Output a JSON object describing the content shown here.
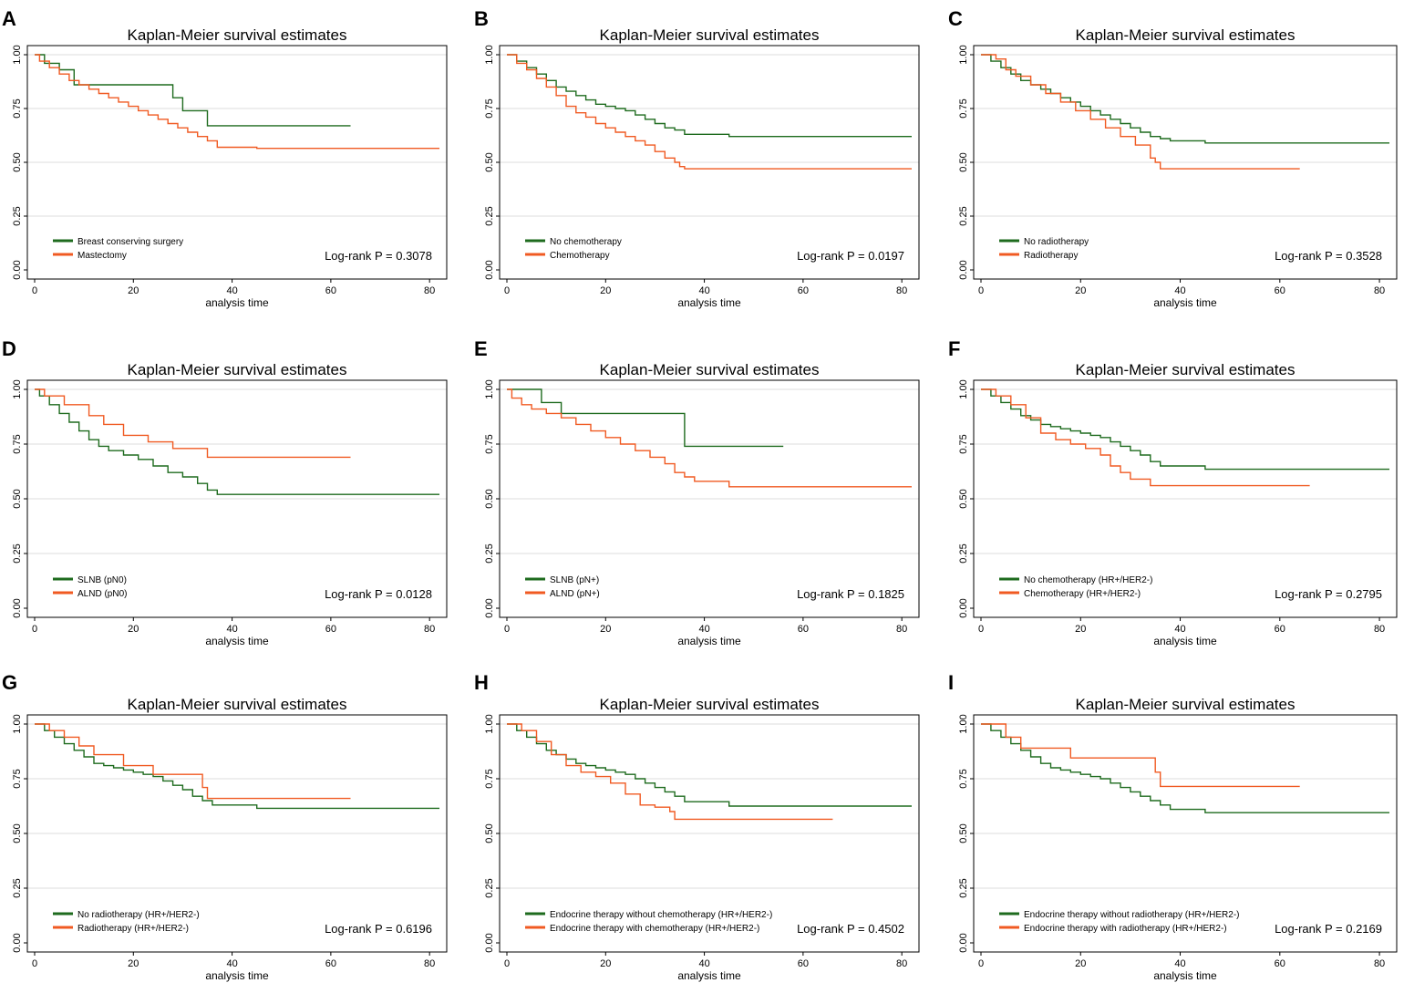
{
  "chart_data": [
    {
      "letter": "A",
      "type": "line",
      "step": true,
      "title": "Kaplan-Meier survival estimates",
      "xlabel": "analysis time",
      "ylabel": "",
      "xlim": [
        0,
        82
      ],
      "ylim": [
        0,
        1
      ],
      "xticks": [
        "0",
        "20",
        "40",
        "60",
        "80"
      ],
      "yticks": [
        "0.00",
        "0.25",
        "0.50",
        "0.75",
        "1.00"
      ],
      "pvalue": "Log-rank P = 0.3078",
      "series": [
        {
          "name": "Breast conserving surgery",
          "color": "#1e6b1e",
          "x": [
            0,
            2,
            5,
            8,
            28,
            30,
            35,
            64
          ],
          "y": [
            1,
            0.96,
            0.93,
            0.86,
            0.8,
            0.74,
            0.67,
            0.67
          ]
        },
        {
          "name": "Mastectomy",
          "color": "#f05a22",
          "x": [
            0,
            1,
            3,
            5,
            7,
            9,
            11,
            13,
            15,
            17,
            19,
            21,
            23,
            25,
            27,
            29,
            31,
            33,
            35,
            37,
            45,
            82
          ],
          "y": [
            1,
            0.97,
            0.94,
            0.91,
            0.88,
            0.86,
            0.84,
            0.82,
            0.8,
            0.78,
            0.76,
            0.74,
            0.72,
            0.7,
            0.68,
            0.66,
            0.64,
            0.62,
            0.6,
            0.57,
            0.565,
            0.565
          ]
        }
      ]
    },
    {
      "letter": "B",
      "type": "line",
      "step": true,
      "title": "Kaplan-Meier survival estimates",
      "xlabel": "analysis time",
      "ylabel": "",
      "xlim": [
        0,
        82
      ],
      "ylim": [
        0,
        1
      ],
      "xticks": [
        "0",
        "20",
        "40",
        "60",
        "80"
      ],
      "yticks": [
        "0.00",
        "0.25",
        "0.50",
        "0.75",
        "1.00"
      ],
      "pvalue": "Log-rank P = 0.0197",
      "series": [
        {
          "name": "No chemotherapy",
          "color": "#1e6b1e",
          "x": [
            0,
            2,
            4,
            6,
            8,
            10,
            12,
            14,
            16,
            18,
            20,
            22,
            24,
            26,
            28,
            30,
            32,
            34,
            36,
            45,
            82
          ],
          "y": [
            1,
            0.97,
            0.94,
            0.91,
            0.88,
            0.85,
            0.83,
            0.81,
            0.79,
            0.77,
            0.76,
            0.75,
            0.74,
            0.72,
            0.7,
            0.68,
            0.66,
            0.65,
            0.63,
            0.62,
            0.62
          ]
        },
        {
          "name": "Chemotherapy",
          "color": "#f05a22",
          "x": [
            0,
            2,
            4,
            6,
            8,
            10,
            12,
            14,
            16,
            18,
            20,
            22,
            24,
            26,
            28,
            30,
            32,
            34,
            35,
            36,
            82
          ],
          "y": [
            1,
            0.96,
            0.93,
            0.89,
            0.85,
            0.81,
            0.76,
            0.73,
            0.71,
            0.68,
            0.66,
            0.64,
            0.62,
            0.6,
            0.58,
            0.55,
            0.52,
            0.5,
            0.48,
            0.47,
            0.47
          ]
        }
      ]
    },
    {
      "letter": "C",
      "type": "line",
      "step": true,
      "title": "Kaplan-Meier survival estimates",
      "xlabel": "analysis time",
      "ylabel": "",
      "xlim": [
        0,
        82
      ],
      "ylim": [
        0,
        1
      ],
      "xticks": [
        "0",
        "20",
        "40",
        "60",
        "80"
      ],
      "yticks": [
        "0.00",
        "0.25",
        "0.50",
        "0.75",
        "1.00"
      ],
      "pvalue": "Log-rank P = 0.3528",
      "series": [
        {
          "name": "No radiotherapy",
          "color": "#1e6b1e",
          "x": [
            0,
            2,
            4,
            6,
            8,
            10,
            12,
            14,
            16,
            18,
            20,
            22,
            24,
            26,
            28,
            30,
            32,
            34,
            36,
            38,
            45,
            82
          ],
          "y": [
            1,
            0.97,
            0.94,
            0.91,
            0.88,
            0.86,
            0.84,
            0.82,
            0.8,
            0.78,
            0.76,
            0.74,
            0.72,
            0.7,
            0.68,
            0.66,
            0.64,
            0.62,
            0.61,
            0.6,
            0.59,
            0.59
          ]
        },
        {
          "name": "Radiotherapy",
          "color": "#f05a22",
          "x": [
            0,
            3,
            5,
            7,
            10,
            13,
            16,
            19,
            22,
            25,
            28,
            31,
            34,
            35,
            36,
            64
          ],
          "y": [
            1,
            0.98,
            0.93,
            0.9,
            0.86,
            0.82,
            0.78,
            0.74,
            0.7,
            0.66,
            0.62,
            0.58,
            0.52,
            0.5,
            0.47,
            0.47
          ]
        }
      ]
    },
    {
      "letter": "D",
      "type": "line",
      "step": true,
      "title": "Kaplan-Meier survival estimates",
      "xlabel": "analysis time",
      "ylabel": "",
      "xlim": [
        0,
        82
      ],
      "ylim": [
        0,
        1
      ],
      "xticks": [
        "0",
        "20",
        "40",
        "60",
        "80"
      ],
      "yticks": [
        "0.00",
        "0.25",
        "0.50",
        "0.75",
        "1.00"
      ],
      "pvalue": "Log-rank P = 0.0128",
      "series": [
        {
          "name": "SLNB (pN0)",
          "color": "#1e6b1e",
          "x": [
            0,
            1,
            3,
            5,
            7,
            9,
            11,
            13,
            15,
            18,
            21,
            24,
            27,
            30,
            33,
            35,
            37,
            82
          ],
          "y": [
            1,
            0.97,
            0.93,
            0.89,
            0.85,
            0.81,
            0.77,
            0.74,
            0.72,
            0.7,
            0.68,
            0.65,
            0.62,
            0.6,
            0.57,
            0.54,
            0.52,
            0.52
          ]
        },
        {
          "name": "ALND (pN0)",
          "color": "#f05a22",
          "x": [
            0,
            2,
            6,
            11,
            14,
            18,
            23,
            28,
            35,
            64
          ],
          "y": [
            1,
            0.97,
            0.93,
            0.88,
            0.84,
            0.79,
            0.76,
            0.73,
            0.69,
            0.69
          ]
        }
      ]
    },
    {
      "letter": "E",
      "type": "line",
      "step": true,
      "title": "Kaplan-Meier survival estimates",
      "xlabel": "analysis time",
      "ylabel": "",
      "xlim": [
        0,
        82
      ],
      "ylim": [
        0,
        1
      ],
      "xticks": [
        "0",
        "20",
        "40",
        "60",
        "80"
      ],
      "yticks": [
        "0.00",
        "0.25",
        "0.50",
        "0.75",
        "1.00"
      ],
      "pvalue": "Log-rank P = 0.1825",
      "series": [
        {
          "name": "SLNB (pN+)",
          "color": "#1e6b1e",
          "x": [
            0,
            7,
            11,
            36,
            56
          ],
          "y": [
            1,
            0.94,
            0.89,
            0.74,
            0.74
          ]
        },
        {
          "name": "ALND (pN+)",
          "color": "#f05a22",
          "x": [
            0,
            1,
            3,
            5,
            8,
            11,
            14,
            17,
            20,
            23,
            26,
            29,
            32,
            34,
            36,
            38,
            45,
            82
          ],
          "y": [
            1,
            0.96,
            0.93,
            0.91,
            0.89,
            0.87,
            0.84,
            0.81,
            0.78,
            0.75,
            0.72,
            0.69,
            0.66,
            0.62,
            0.6,
            0.58,
            0.555,
            0.555
          ]
        }
      ]
    },
    {
      "letter": "F",
      "type": "line",
      "step": true,
      "title": "Kaplan-Meier survival estimates",
      "xlabel": "analysis time",
      "ylabel": "",
      "xlim": [
        0,
        82
      ],
      "ylim": [
        0,
        1
      ],
      "xticks": [
        "0",
        "20",
        "40",
        "60",
        "80"
      ],
      "yticks": [
        "0.00",
        "0.25",
        "0.50",
        "0.75",
        "1.00"
      ],
      "pvalue": "Log-rank P = 0.2795",
      "series": [
        {
          "name": "No chemotherapy (HR+/HER2-)",
          "color": "#1e6b1e",
          "x": [
            0,
            2,
            4,
            6,
            8,
            10,
            12,
            14,
            16,
            18,
            20,
            22,
            24,
            26,
            28,
            30,
            32,
            34,
            36,
            45,
            82
          ],
          "y": [
            1,
            0.97,
            0.94,
            0.91,
            0.88,
            0.86,
            0.84,
            0.83,
            0.82,
            0.81,
            0.8,
            0.79,
            0.78,
            0.76,
            0.74,
            0.72,
            0.7,
            0.67,
            0.65,
            0.635,
            0.635
          ]
        },
        {
          "name": "Chemotherapy (HR+/HER2-)",
          "color": "#f05a22",
          "x": [
            0,
            3,
            6,
            9,
            12,
            15,
            18,
            21,
            24,
            26,
            28,
            30,
            34,
            66
          ],
          "y": [
            1,
            0.97,
            0.93,
            0.87,
            0.8,
            0.77,
            0.75,
            0.73,
            0.7,
            0.65,
            0.62,
            0.59,
            0.56,
            0.56
          ]
        }
      ]
    },
    {
      "letter": "G",
      "type": "line",
      "step": true,
      "title": "Kaplan-Meier survival estimates",
      "xlabel": "analysis time",
      "ylabel": "",
      "xlim": [
        0,
        82
      ],
      "ylim": [
        0,
        1
      ],
      "xticks": [
        "0",
        "20",
        "40",
        "60",
        "80"
      ],
      "yticks": [
        "0.00",
        "0.25",
        "0.50",
        "0.75",
        "1.00"
      ],
      "pvalue": "Log-rank P = 0.6196",
      "series": [
        {
          "name": "No radiotherapy (HR+/HER2-)",
          "color": "#1e6b1e",
          "x": [
            0,
            2,
            4,
            6,
            8,
            10,
            12,
            14,
            16,
            18,
            20,
            22,
            24,
            26,
            28,
            30,
            32,
            34,
            36,
            45,
            82
          ],
          "y": [
            1,
            0.97,
            0.94,
            0.91,
            0.88,
            0.85,
            0.82,
            0.81,
            0.8,
            0.79,
            0.78,
            0.77,
            0.76,
            0.74,
            0.72,
            0.7,
            0.67,
            0.65,
            0.63,
            0.615,
            0.615
          ]
        },
        {
          "name": "Radiotherapy (HR+/HER2-)",
          "color": "#f05a22",
          "x": [
            0,
            3,
            6,
            9,
            12,
            18,
            24,
            34,
            35,
            64
          ],
          "y": [
            1,
            0.97,
            0.94,
            0.9,
            0.86,
            0.81,
            0.77,
            0.71,
            0.66,
            0.66
          ]
        }
      ]
    },
    {
      "letter": "H",
      "type": "line",
      "step": true,
      "title": "Kaplan-Meier survival estimates",
      "xlabel": "analysis time",
      "ylabel": "",
      "xlim": [
        0,
        82
      ],
      "ylim": [
        0,
        1
      ],
      "xticks": [
        "0",
        "20",
        "40",
        "60",
        "80"
      ],
      "yticks": [
        "0.00",
        "0.25",
        "0.50",
        "0.75",
        "1.00"
      ],
      "pvalue": "Log-rank P = 0.4502",
      "series": [
        {
          "name": "Endocrine therapy without chemotherapy (HR+/HER2-)",
          "color": "#1e6b1e",
          "x": [
            0,
            2,
            4,
            6,
            8,
            10,
            12,
            14,
            16,
            18,
            20,
            22,
            24,
            26,
            28,
            30,
            32,
            34,
            36,
            45,
            82
          ],
          "y": [
            1,
            0.97,
            0.94,
            0.91,
            0.88,
            0.86,
            0.84,
            0.82,
            0.81,
            0.8,
            0.79,
            0.78,
            0.77,
            0.75,
            0.73,
            0.71,
            0.69,
            0.67,
            0.645,
            0.625,
            0.625
          ]
        },
        {
          "name": "Endocrine therapy with chemotherapy (HR+/HER2-)",
          "color": "#f05a22",
          "x": [
            0,
            3,
            6,
            9,
            12,
            15,
            18,
            21,
            24,
            27,
            30,
            33,
            34,
            66
          ],
          "y": [
            1,
            0.97,
            0.92,
            0.86,
            0.81,
            0.78,
            0.76,
            0.73,
            0.68,
            0.63,
            0.62,
            0.6,
            0.565,
            0.565
          ]
        }
      ]
    },
    {
      "letter": "I",
      "type": "line",
      "step": true,
      "title": "Kaplan-Meier survival estimates",
      "xlabel": "analysis time",
      "ylabel": "",
      "xlim": [
        0,
        82
      ],
      "ylim": [
        0,
        1
      ],
      "xticks": [
        "0",
        "20",
        "40",
        "60",
        "80"
      ],
      "yticks": [
        "0.00",
        "0.25",
        "0.50",
        "0.75",
        "1.00"
      ],
      "pvalue": "Log-rank P = 0.2169",
      "series": [
        {
          "name": "Endocrine therapy without radiotherapy (HR+/HER2-)",
          "color": "#1e6b1e",
          "x": [
            0,
            2,
            4,
            6,
            8,
            10,
            12,
            14,
            16,
            18,
            20,
            22,
            24,
            26,
            28,
            30,
            32,
            34,
            36,
            38,
            45,
            82
          ],
          "y": [
            1,
            0.97,
            0.94,
            0.91,
            0.88,
            0.85,
            0.82,
            0.8,
            0.79,
            0.78,
            0.77,
            0.76,
            0.75,
            0.73,
            0.71,
            0.69,
            0.67,
            0.65,
            0.63,
            0.61,
            0.595,
            0.595
          ]
        },
        {
          "name": "Endocrine therapy with radiotherapy (HR+/HER2-)",
          "color": "#f05a22",
          "x": [
            0,
            5,
            8,
            18,
            35,
            36,
            64
          ],
          "y": [
            1,
            0.94,
            0.89,
            0.845,
            0.78,
            0.715,
            0.715
          ]
        }
      ]
    }
  ]
}
